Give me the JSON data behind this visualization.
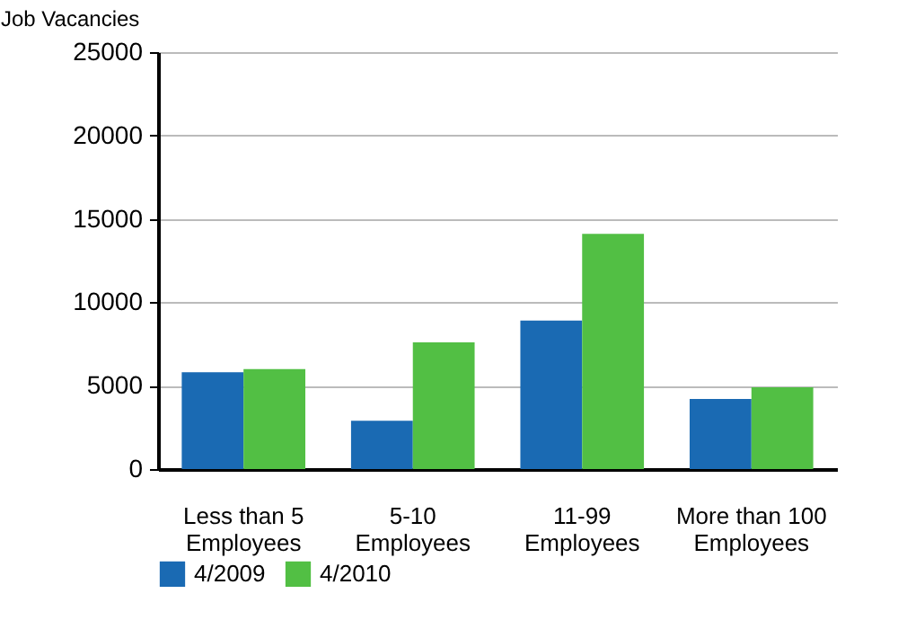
{
  "chart_data": {
    "type": "bar",
    "ylabel": "Job Vacancies",
    "categories": [
      "Less than 5 Employees",
      "5-10 Employees",
      "11-99 Employees",
      "More than 100 Employees"
    ],
    "series": [
      {
        "name": "4/2009",
        "color": "#1a6ab3",
        "values": [
          5800,
          2900,
          8900,
          4200
        ]
      },
      {
        "name": "4/2010",
        "color": "#52bf44",
        "values": [
          6000,
          7600,
          14100,
          4900
        ]
      }
    ],
    "ylim": [
      0,
      25000
    ],
    "yticks": [
      0,
      5000,
      10000,
      15000,
      20000,
      25000
    ],
    "grid": "y",
    "legend": "bottom"
  }
}
